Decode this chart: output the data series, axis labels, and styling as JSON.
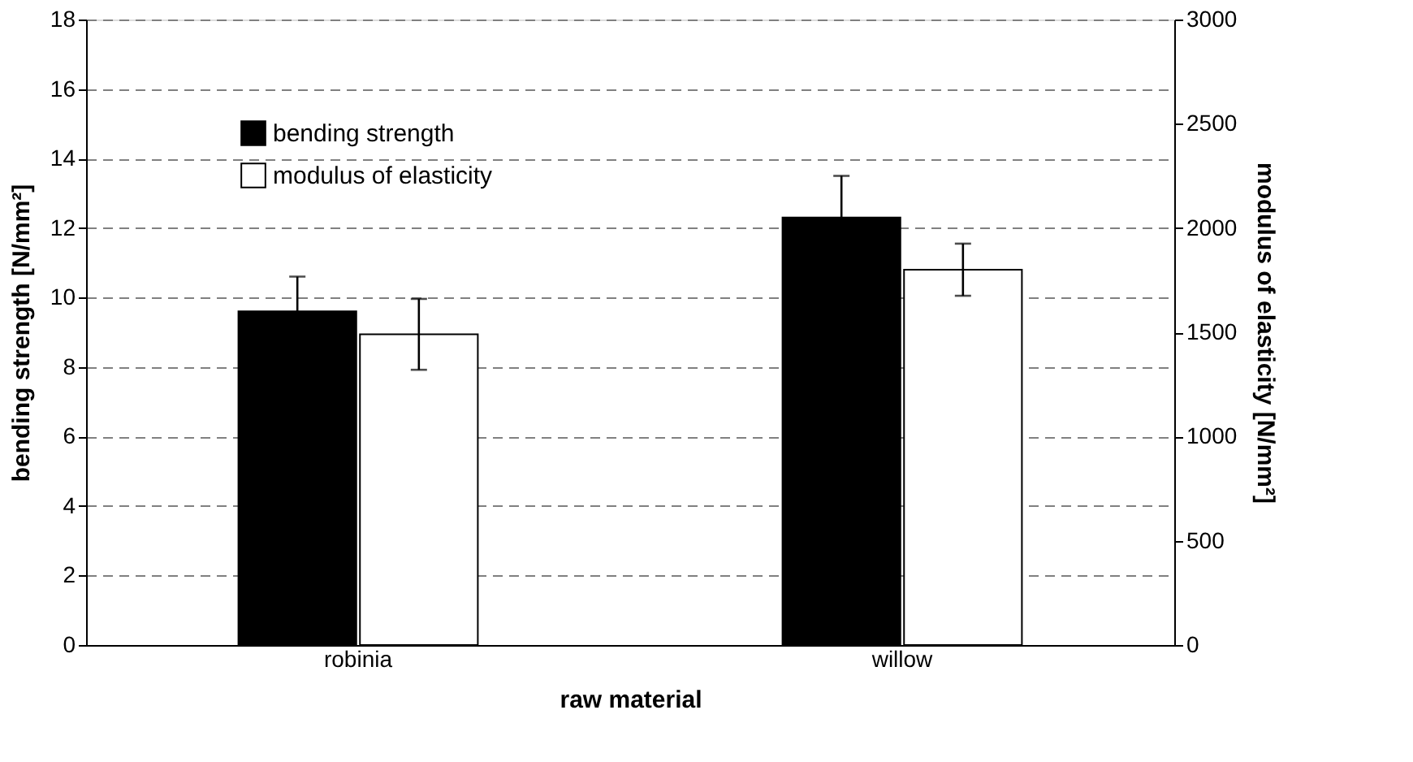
{
  "chart_data": {
    "type": "bar",
    "xlabel": "raw material",
    "ylabel": "bending strength [N/mm²]",
    "y2label": "modulus of elasticity [N/mm²]",
    "categories": [
      "robinia",
      "willow"
    ],
    "series": [
      {
        "name": "bending strength",
        "color": "#000000",
        "values": [
          9.6,
          12.3
        ],
        "errors": [
          1.0,
          1.2
        ]
      },
      {
        "name": "modulus of elasticity",
        "color": "#ffffff",
        "axis": "y2",
        "values": [
          1490,
          1800
        ],
        "errors": [
          170,
          125
        ]
      }
    ],
    "ylim": [
      0,
      18
    ],
    "yticks": [
      0,
      2,
      4,
      6,
      8,
      10,
      12,
      14,
      16,
      18
    ],
    "y2lim": [
      0,
      3000
    ],
    "y2ticks": [
      0,
      500,
      1000,
      1500,
      2000,
      2500,
      3000
    ],
    "grid": "y",
    "legend": "top left"
  }
}
